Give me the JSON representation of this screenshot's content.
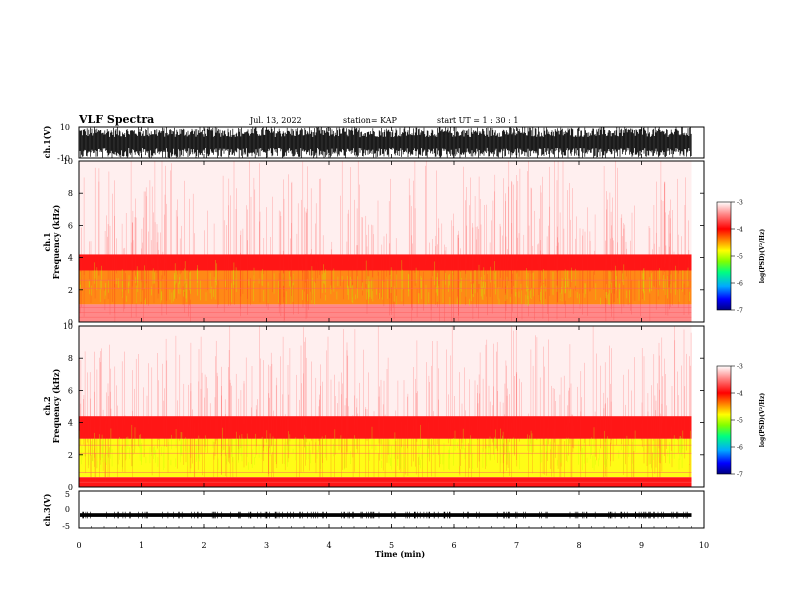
{
  "header": {
    "title": "VLF Spectra",
    "date": "Jul. 13, 2022",
    "station": "station= KAP",
    "start_ut": "start UT = 1 : 30 : 1"
  },
  "colorbar": {
    "label": "log(PSD)(V²/Hz)",
    "ticks": [
      "-3",
      "-4",
      "-5",
      "-6",
      "-7"
    ],
    "range": [
      -7,
      -3
    ],
    "colors": [
      "#000080",
      "#0000ff",
      "#00aaff",
      "#00ff80",
      "#80ff00",
      "#ffff00",
      "#ff8000",
      "#ff0000",
      "#ff8080",
      "#ffffff"
    ]
  },
  "chart_data": [
    {
      "type": "line",
      "name": "ch1-waveform",
      "ylabel": "ch.1(V)",
      "ylim": [
        -10,
        10
      ],
      "yticks": [
        "10",
        "-10"
      ],
      "xlim": [
        0,
        10
      ],
      "color": "#000000"
    },
    {
      "type": "heatmap",
      "name": "ch1-spectrogram",
      "ylabel": "ch.1\nFrequency (kHz)",
      "ylabel_lines": [
        "ch.1",
        "Frequency (kHz)"
      ],
      "ylim": [
        0,
        10
      ],
      "yticks": [
        "0",
        "2",
        "4",
        "6",
        "8",
        "10"
      ],
      "xlim": [
        0,
        10
      ],
      "data_end_min": 9.8,
      "bands": [
        {
          "from": 0,
          "to": 1.1,
          "level": -3.6
        },
        {
          "from": 1.1,
          "to": 3.2,
          "level": -4.2
        },
        {
          "from": 3.2,
          "to": 4.2,
          "level": -3.8
        },
        {
          "from": 4.2,
          "to": 10,
          "level": -3.2
        }
      ]
    },
    {
      "type": "heatmap",
      "name": "ch2-spectrogram",
      "ylabel": "ch.2\nFrequency (kHz)",
      "ylabel_lines": [
        "ch.2",
        "Frequency (kHz)"
      ],
      "ylim": [
        0,
        10
      ],
      "yticks": [
        "0",
        "2",
        "4",
        "6",
        "8",
        "10"
      ],
      "xlim": [
        0,
        10
      ],
      "data_end_min": 9.8,
      "bands": [
        {
          "from": 0,
          "to": 0.6,
          "level": -4.0
        },
        {
          "from": 0.6,
          "to": 3.0,
          "level": -4.6
        },
        {
          "from": 3.0,
          "to": 4.4,
          "level": -3.8
        },
        {
          "from": 4.4,
          "to": 10,
          "level": -3.2
        }
      ]
    },
    {
      "type": "line",
      "name": "ch3-waveform",
      "ylabel": "ch.3(V)",
      "ylim": [
        -5,
        5
      ],
      "yticks": [
        "5",
        "0",
        "-5"
      ],
      "xlim": [
        0,
        10
      ],
      "level": -1.5,
      "color": "#000000"
    }
  ],
  "xaxis": {
    "label": "Time (min)",
    "ticks": [
      "0",
      "1",
      "2",
      "3",
      "4",
      "5",
      "6",
      "7",
      "8",
      "9",
      "10"
    ],
    "range": [
      0,
      10
    ]
  }
}
